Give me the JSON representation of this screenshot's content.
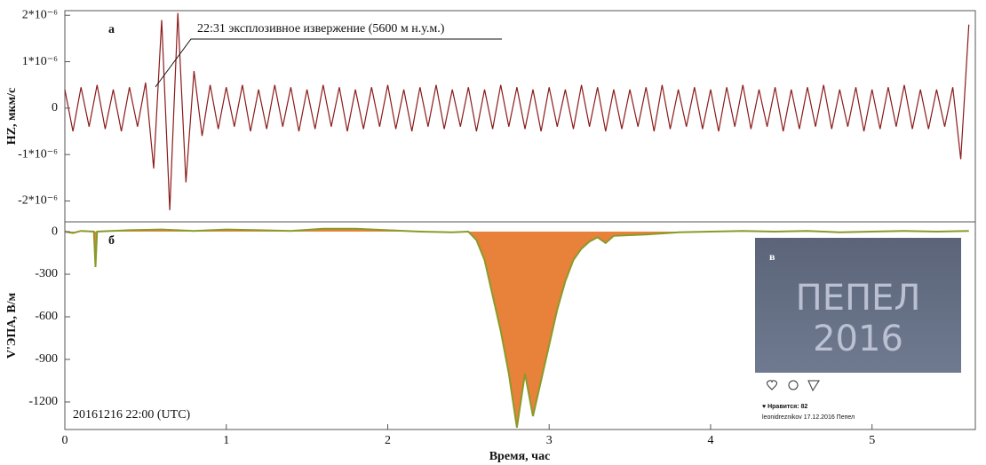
{
  "chart_data": [
    {
      "type": "line",
      "panel_label": "а",
      "y_label": "HZ, мкм/с",
      "annotation": "22:31 эксплозивное извержение (5600 м н.у.м.)",
      "color": "#8b1a1a",
      "xlim": [
        0,
        5.64
      ],
      "ylim": [
        -2.45e-06,
        2.1e-06
      ],
      "yticks": [
        {
          "value": 2e-06,
          "label": "2*10⁻⁶"
        },
        {
          "value": 1e-06,
          "label": "1*10⁻⁶"
        },
        0,
        {
          "value": -1e-06,
          "label": "-1*10⁻⁶"
        },
        {
          "value": -2e-06,
          "label": "-2*10⁻⁶"
        }
      ],
      "x": [
        0,
        0.05,
        0.1,
        0.15,
        0.2,
        0.25,
        0.3,
        0.35,
        0.4,
        0.45,
        0.5,
        0.55,
        0.6,
        0.65,
        0.7,
        0.75,
        0.8,
        0.85,
        0.9,
        0.95,
        1,
        1.05,
        1.1,
        1.15,
        1.2,
        1.25,
        1.3,
        1.35,
        1.4,
        1.45,
        1.5,
        1.55,
        1.6,
        1.65,
        1.7,
        1.75,
        1.8,
        1.85,
        1.9,
        1.95,
        2,
        2.05,
        2.1,
        2.15,
        2.2,
        2.25,
        2.3,
        2.35,
        2.4,
        2.45,
        2.5,
        2.55,
        2.6,
        2.65,
        2.7,
        2.75,
        2.8,
        2.85,
        2.9,
        2.95,
        3,
        3.05,
        3.1,
        3.15,
        3.2,
        3.25,
        3.3,
        3.35,
        3.4,
        3.45,
        3.5,
        3.55,
        3.6,
        3.65,
        3.7,
        3.75,
        3.8,
        3.85,
        3.9,
        3.95,
        4,
        4.05,
        4.1,
        4.15,
        4.2,
        4.25,
        4.3,
        4.35,
        4.4,
        4.45,
        4.5,
        4.55,
        4.6,
        4.65,
        4.7,
        4.75,
        4.8,
        4.85,
        4.9,
        4.95,
        5,
        5.05,
        5.1,
        5.15,
        5.2,
        5.25,
        5.3,
        5.35,
        5.4,
        5.45,
        5.5,
        5.55,
        5.6
      ],
      "values": [
        4e-07,
        -5e-07,
        4.5e-07,
        -4e-07,
        5e-07,
        -4.5e-07,
        4e-07,
        -5e-07,
        4.5e-07,
        -4e-07,
        5.5e-07,
        -1.3e-06,
        1.9e-06,
        -2.2e-06,
        2.05e-06,
        -1.6e-06,
        8e-07,
        -6e-07,
        5e-07,
        -4.5e-07,
        4.5e-07,
        -4e-07,
        5e-07,
        -5e-07,
        4e-07,
        -4.5e-07,
        5e-07,
        -4e-07,
        4.5e-07,
        -5e-07,
        4e-07,
        -4.5e-07,
        5e-07,
        -4e-07,
        4.5e-07,
        -5e-07,
        4e-07,
        -4.5e-07,
        4.5e-07,
        -4e-07,
        5e-07,
        -4.5e-07,
        4e-07,
        -5e-07,
        4.5e-07,
        -4e-07,
        5e-07,
        -4.5e-07,
        4e-07,
        -4e-07,
        4.5e-07,
        -5e-07,
        4e-07,
        -4.5e-07,
        5e-07,
        -4e-07,
        4.5e-07,
        -4.5e-07,
        4e-07,
        -5e-07,
        4.5e-07,
        -4e-07,
        4e-07,
        -4.5e-07,
        5e-07,
        -4e-07,
        4.5e-07,
        -5e-07,
        4e-07,
        -4.5e-07,
        4e-07,
        -4e-07,
        4.5e-07,
        -5e-07,
        5e-07,
        -4.5e-07,
        4e-07,
        -4e-07,
        4.5e-07,
        -4.5e-07,
        4e-07,
        -5e-07,
        4.5e-07,
        -4e-07,
        5e-07,
        -4.5e-07,
        4e-07,
        -4e-07,
        4.5e-07,
        -5e-07,
        4e-07,
        -4.5e-07,
        4.5e-07,
        -4e-07,
        5e-07,
        -4.5e-07,
        4e-07,
        -4e-07,
        4.5e-07,
        -5e-07,
        4e-07,
        -4.5e-07,
        4.5e-07,
        -4e-07,
        5e-07,
        -4.5e-07,
        4e-07,
        -4.5e-07,
        4e-07,
        -4e-07,
        4.5e-07,
        -1.1e-06,
        1.8e-06
      ]
    },
    {
      "type": "area",
      "panel_label": "б",
      "y_label": "V'ЭПА, В/м",
      "date_label": "20161216  22:00 (UTC)",
      "x_label": "Время, час",
      "color": "#8a9a2a",
      "area_color": "#e8823a",
      "xlim": [
        0,
        5.64
      ],
      "xticks": [
        0,
        1,
        2,
        3,
        4,
        5
      ],
      "ylim": [
        -1394,
        69
      ],
      "yticks": [
        0,
        -300,
        -600,
        -900,
        -1200
      ],
      "x": [
        0,
        0.05,
        0.1,
        0.18,
        0.19,
        0.2,
        0.4,
        0.6,
        0.8,
        1,
        1.2,
        1.4,
        1.6,
        1.8,
        2,
        2.2,
        2.4,
        2.5,
        2.55,
        2.6,
        2.65,
        2.7,
        2.75,
        2.8,
        2.85,
        2.9,
        2.95,
        3,
        3.05,
        3.1,
        3.15,
        3.2,
        3.25,
        3.3,
        3.35,
        3.4,
        3.6,
        3.8,
        4,
        4.2,
        4.4,
        4.6,
        4.8,
        5,
        5.2,
        5.4,
        5.6
      ],
      "values": [
        0,
        -10,
        5,
        0,
        -250,
        0,
        10,
        15,
        5,
        15,
        10,
        5,
        20,
        20,
        10,
        0,
        -5,
        0,
        -60,
        -200,
        -450,
        -700,
        -1000,
        -1380,
        -1000,
        -1300,
        -1050,
        -800,
        -550,
        -350,
        -200,
        -120,
        -70,
        -40,
        -80,
        -30,
        -20,
        -5,
        0,
        5,
        0,
        5,
        -5,
        0,
        5,
        0,
        5
      ]
    }
  ],
  "inset": {
    "label": "в",
    "photo_text": [
      "ПЕПЕЛ",
      "2016"
    ],
    "likes": "♥ Нравится: 82",
    "caption": "leonidreznikov 17.12.2016 Пепел"
  }
}
